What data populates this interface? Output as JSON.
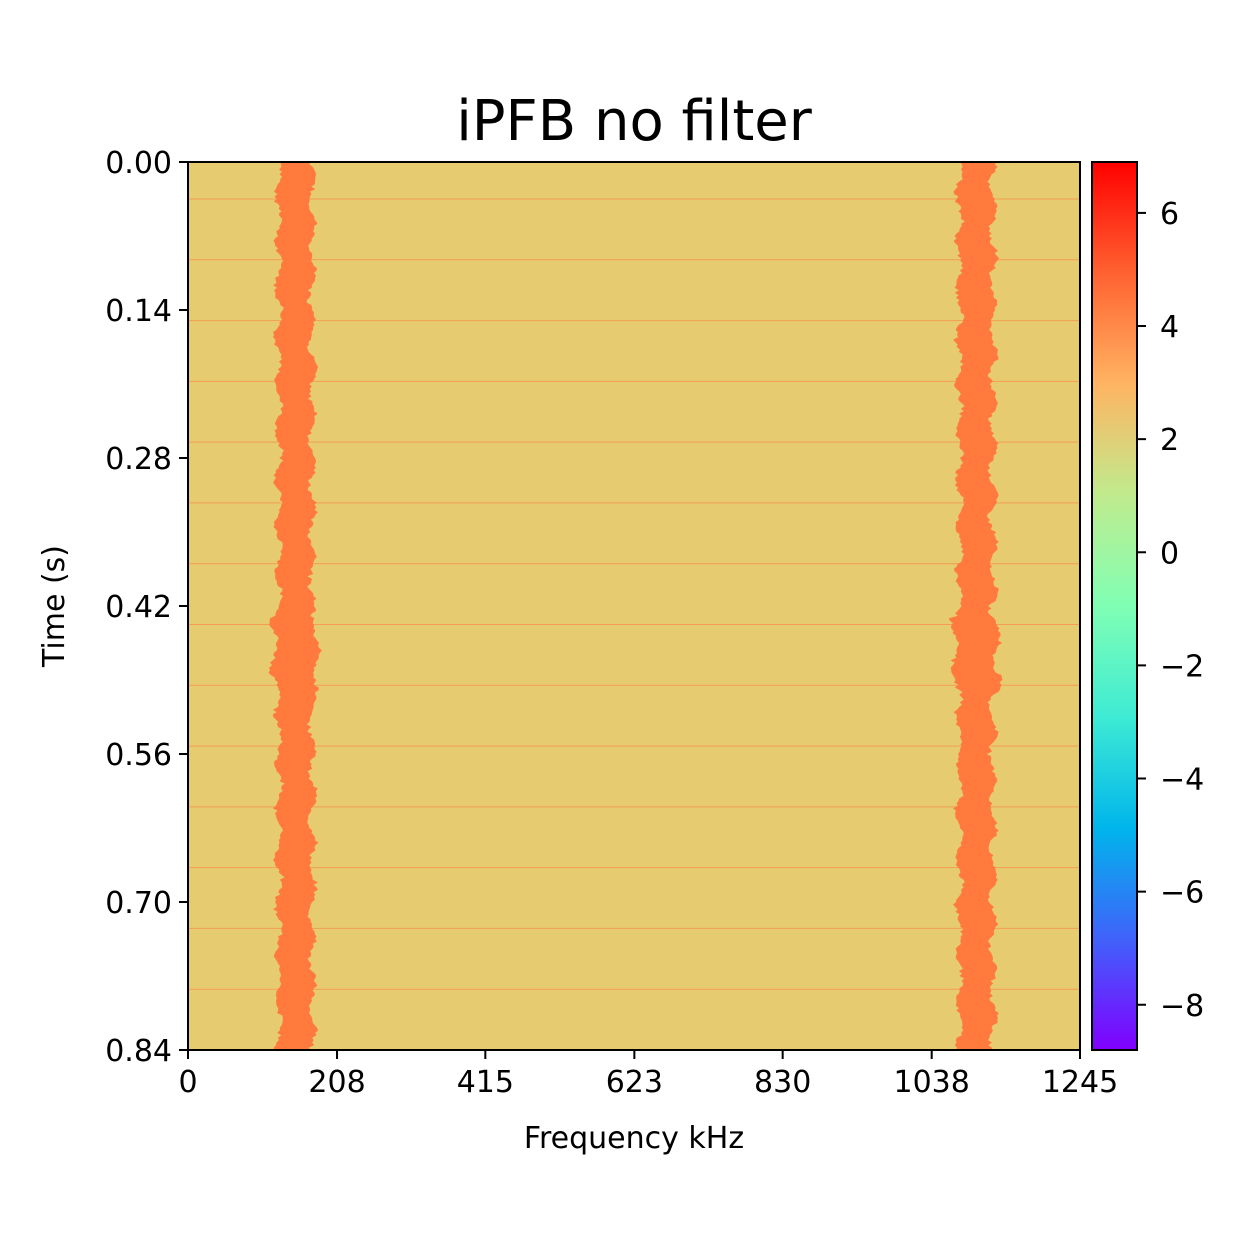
{
  "chart_data": {
    "type": "heatmap",
    "title": "iPFB no filter",
    "xlabel": "Frequency kHz",
    "ylabel": "Time (s)",
    "xlim": [
      0,
      1245
    ],
    "ylim": [
      0.84,
      0.0
    ],
    "x_ticks": [
      0,
      208,
      415,
      623,
      830,
      1038,
      1245
    ],
    "x_tick_labels": [
      "0",
      "208",
      "415",
      "623",
      "830",
      "1038",
      "1245"
    ],
    "y_ticks": [
      0.0,
      0.14,
      0.28,
      0.42,
      0.56,
      0.7,
      0.84
    ],
    "y_tick_labels": [
      "0.00",
      "0.14",
      "0.28",
      "0.42",
      "0.56",
      "0.70",
      "0.84"
    ],
    "colorscale": "rainbow",
    "color_range": [
      -8.8,
      6.9
    ],
    "colorbar_ticks": [
      6,
      4,
      2,
      0,
      -2,
      -4,
      -6,
      -8
    ],
    "colorbar_tick_labels": [
      "6",
      "4",
      "2",
      "0",
      "−2",
      "−4",
      "−6",
      "−8"
    ],
    "background_level": 2.5,
    "background_color": "#e6cb70",
    "signal_color": "#ff7a3c",
    "signal_lines": [
      {
        "center_frequency": 150,
        "half_width": 18,
        "level": 4.5
      },
      {
        "center_frequency": 1100,
        "half_width": 18,
        "level": 4.5
      }
    ],
    "horizontal_artifacts_every_s": 0.0575,
    "grid": false,
    "legend": "none"
  }
}
